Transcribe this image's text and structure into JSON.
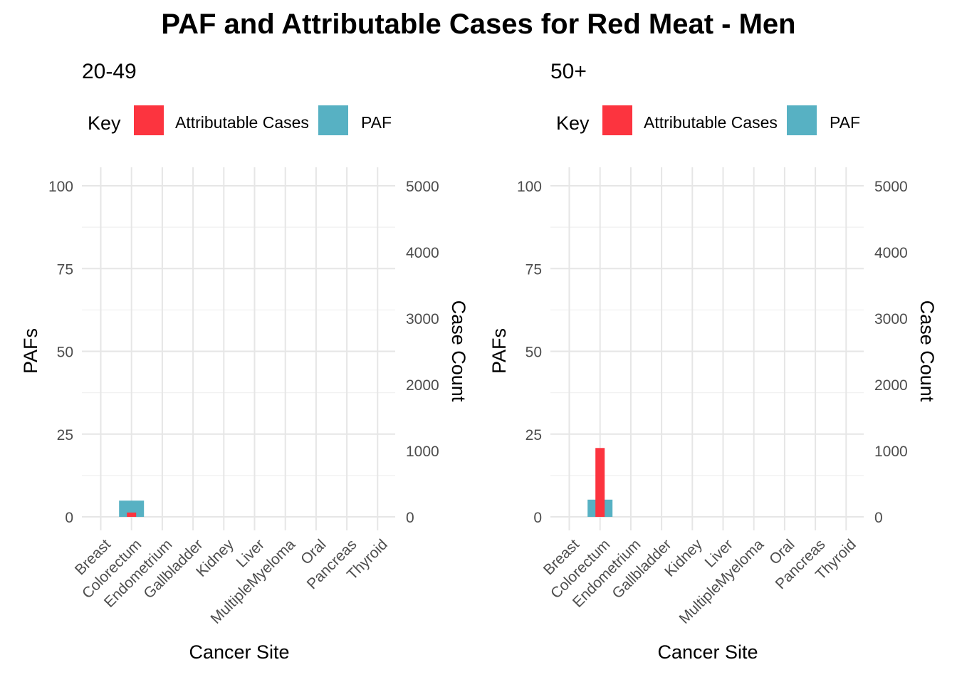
{
  "title": "PAF and Attributable Cases for Red Meat - Men",
  "legend": {
    "title": "Key",
    "items": [
      {
        "label": "Attributable Cases",
        "color": "#FC343F"
      },
      {
        "label": "PAF",
        "color": "#57B1C3"
      }
    ]
  },
  "chart_data": [
    {
      "type": "bar",
      "title": "20-49",
      "xlabel": "Cancer Site",
      "ylabel": "PAFs",
      "ylabel_right": "Case Count",
      "categories": [
        "Breast",
        "Colorectum",
        "Endometrium",
        "Gallbladder",
        "Kidney",
        "Liver",
        "MultipleMyeloma",
        "Oral",
        "Pancreas",
        "Thyroid"
      ],
      "ylim": [
        0,
        100
      ],
      "yticks": [
        0,
        25,
        50,
        75,
        100
      ],
      "ylim_right": [
        0,
        5000
      ],
      "yticks_right": [
        0,
        1000,
        2000,
        3000,
        4000,
        5000
      ],
      "series": [
        {
          "name": "PAF",
          "axis": "left",
          "color": "#57B1C3",
          "values": [
            0,
            4.9,
            0,
            0,
            0,
            0,
            0,
            0,
            0,
            0
          ]
        },
        {
          "name": "Attributable Cases",
          "axis": "right",
          "color": "#FC343F",
          "values": [
            0,
            65,
            0,
            0,
            0,
            0,
            0,
            0,
            0,
            0
          ]
        }
      ],
      "legend_position": "top",
      "grid": true
    },
    {
      "type": "bar",
      "title": "50+",
      "xlabel": "Cancer Site",
      "ylabel": "PAFs",
      "ylabel_right": "Case Count",
      "categories": [
        "Breast",
        "Colorectum",
        "Endometrium",
        "Gallbladder",
        "Kidney",
        "Liver",
        "MultipleMyeloma",
        "Oral",
        "Pancreas",
        "Thyroid"
      ],
      "ylim": [
        0,
        100
      ],
      "yticks": [
        0,
        25,
        50,
        75,
        100
      ],
      "ylim_right": [
        0,
        5000
      ],
      "yticks_right": [
        0,
        1000,
        2000,
        3000,
        4000,
        5000
      ],
      "series": [
        {
          "name": "PAF",
          "axis": "left",
          "color": "#57B1C3",
          "values": [
            0,
            5.2,
            0,
            0,
            0,
            0,
            0,
            0,
            0,
            0
          ]
        },
        {
          "name": "Attributable Cases",
          "axis": "right",
          "color": "#FC343F",
          "values": [
            0,
            1040,
            0,
            0,
            0,
            0,
            0,
            0,
            0,
            0
          ]
        }
      ],
      "legend_position": "top",
      "grid": true
    }
  ]
}
